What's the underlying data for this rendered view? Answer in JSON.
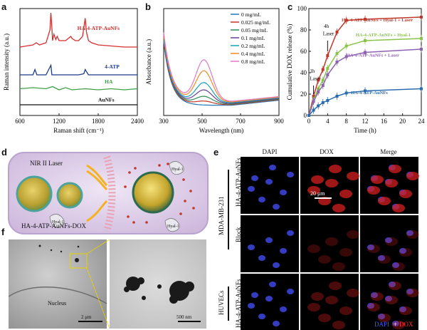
{
  "panel_letters": {
    "a": "a",
    "b": "b",
    "c": "c",
    "d": "d",
    "e": "e",
    "f": "f"
  },
  "chart_data": [
    {
      "id": "a",
      "type": "line",
      "xlabel": "Raman shift (cm⁻¹)",
      "ylabel": "Raman intensity (a.u.)",
      "xlim": [
        600,
        2400
      ],
      "xticks": [
        "600",
        "1200",
        "1800",
        "2400"
      ],
      "series": [
        {
          "name": "HA-4-ATP-AuNFs",
          "color": "#d32f2f",
          "x": [
            600,
            700,
            800,
            850,
            900,
            950,
            1000,
            1030,
            1060,
            1075,
            1090,
            1100,
            1120,
            1150,
            1170,
            1200,
            1300,
            1380,
            1400,
            1450,
            1500,
            1560,
            1580,
            1600,
            1620,
            1650,
            1700,
            1800,
            2000,
            2200,
            2400
          ],
          "y": [
            0.64,
            0.65,
            0.66,
            0.68,
            0.66,
            0.67,
            0.68,
            0.74,
            0.8,
            0.96,
            0.82,
            0.7,
            0.76,
            0.71,
            0.74,
            0.7,
            0.7,
            0.74,
            0.72,
            0.7,
            0.7,
            0.74,
            0.82,
            0.91,
            0.78,
            0.7,
            0.68,
            0.66,
            0.65,
            0.64,
            0.64
          ]
        },
        {
          "name": "4-ATP",
          "color": "#1e3a8a",
          "x": [
            600,
            800,
            830,
            860,
            900,
            1000,
            1075,
            1090,
            1150,
            1200,
            1300,
            1400,
            1500,
            1580,
            1600,
            1650,
            1800,
            2000,
            2400
          ],
          "y": [
            0.38,
            0.38,
            0.43,
            0.38,
            0.38,
            0.38,
            0.47,
            0.38,
            0.38,
            0.38,
            0.38,
            0.38,
            0.38,
            0.39,
            0.43,
            0.38,
            0.38,
            0.38,
            0.38
          ]
        },
        {
          "name": "HA",
          "color": "#43a047",
          "x": [
            600,
            800,
            1000,
            1100,
            1200,
            1300,
            1400,
            1600,
            1800,
            2000,
            2200,
            2400
          ],
          "y": [
            0.25,
            0.26,
            0.25,
            0.27,
            0.24,
            0.26,
            0.24,
            0.25,
            0.24,
            0.25,
            0.24,
            0.25
          ]
        },
        {
          "name": "AuNFs",
          "color": "#111111",
          "x": [
            600,
            2400
          ],
          "y": [
            0.1,
            0.1
          ]
        }
      ]
    },
    {
      "id": "b",
      "type": "line",
      "xlabel": "Wavelength (nm)",
      "ylabel": "Absorbance (a.u.)",
      "xlim": [
        300,
        900
      ],
      "xticks": [
        "300",
        "500",
        "700",
        "900"
      ],
      "series": [
        {
          "name": "0 mg/mL",
          "color": "#1f77b4",
          "scale": 0.0
        },
        {
          "name": "0.025 mg/mL",
          "color": "#c0392b",
          "scale": 0.08
        },
        {
          "name": "0.05 mg/mL",
          "color": "#2e8b57",
          "scale": 0.18
        },
        {
          "name": "0.1 mg/mL",
          "color": "#6a3d9a",
          "scale": 0.32
        },
        {
          "name": "0.2 mg/mL",
          "color": "#17a2b8",
          "scale": 0.48
        },
        {
          "name": "0.4 mg/mL",
          "color": "#f08a24",
          "scale": 0.75
        },
        {
          "name": "0.8 mg/mL",
          "color": "#e377c2",
          "scale": 1.0
        }
      ]
    },
    {
      "id": "c",
      "type": "line",
      "xlabel": "Time (h)",
      "ylabel": "Cumulative DOX release (%)",
      "xlim": [
        0,
        24
      ],
      "ylim": [
        0,
        100
      ],
      "xticks": [
        "0",
        "4",
        "8",
        "12",
        "16",
        "20",
        "24"
      ],
      "yticks": [
        "0",
        "20",
        "40",
        "60",
        "80",
        "100"
      ],
      "series": [
        {
          "name": "HA-4-ATP-AuNFs + Hyal-1 + Laser",
          "color": "#c0392b",
          "x": [
            0,
            1,
            2,
            3,
            4,
            6,
            8,
            12,
            24
          ],
          "y": [
            0,
            18,
            33,
            43,
            56,
            78,
            89,
            90,
            92
          ]
        },
        {
          "name": "HA-4-ATP-AuNFs + Hyal-1",
          "color": "#8bc34a",
          "x": [
            0,
            1,
            2,
            3,
            4,
            6,
            8,
            12,
            24
          ],
          "y": [
            0,
            14,
            25,
            33,
            44,
            58,
            65,
            70,
            72
          ]
        },
        {
          "name": "HA-4-ATP-AuNFs + Laser",
          "color": "#8e63b3",
          "x": [
            0,
            1,
            2,
            3,
            4,
            6,
            8,
            12,
            24
          ],
          "y": [
            0,
            13,
            22,
            28,
            38,
            50,
            55,
            59,
            62
          ]
        },
        {
          "name": "HA-4-ATP-AuNFs",
          "color": "#2b6cb0",
          "x": [
            0,
            1,
            2,
            3,
            4,
            6,
            8,
            12,
            24
          ],
          "y": [
            0,
            5,
            9,
            12,
            14,
            18,
            21,
            23,
            25
          ]
        }
      ],
      "annotations": [
        "4h\nLaser",
        "1h\nLaser"
      ]
    }
  ],
  "panel_d": {
    "nir_label": "NIR II Laser",
    "probe_label": "HA-4-ATP-AuNFs-DOX",
    "hyal": [
      "Hyal-1",
      "Hyal-1",
      "Hyal-1"
    ]
  },
  "panel_e": {
    "columns": [
      "DAPI",
      "DOX",
      "Merge"
    ],
    "row_labels": [
      "HA-4-ATP-AuNFs",
      "Block",
      "HA-4-ATP-AuNFs"
    ],
    "group_labels": [
      "MDA-MB-231",
      "HUVECs"
    ],
    "scalebar": "20 μm",
    "merge_legend_a": "DAPI",
    "merge_legend_plus": "+",
    "merge_legend_b": "DOX"
  },
  "panel_f": {
    "nucleus_label": "Nucleus",
    "scalebar_left": "2 μm",
    "scalebar_right": "500 nm"
  }
}
